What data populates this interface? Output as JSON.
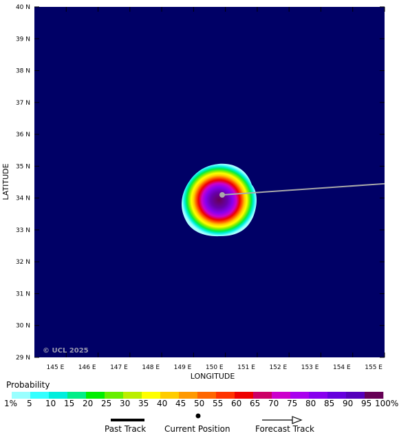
{
  "map": {
    "xlabel": "LONGITUDE",
    "ylabel": "LATITUDE",
    "copyright": "© UCL 2025",
    "background_color": "#000066",
    "lon_range": [
      144,
      155
    ],
    "lat_range": [
      29,
      40
    ],
    "lon_ticks": [
      "145 E",
      "146 E",
      "147 E",
      "148 E",
      "149 E",
      "150 E",
      "151 E",
      "152 E",
      "153 E",
      "154 E",
      "155 E"
    ],
    "lat_ticks": [
      "40 N",
      "39 N",
      "38 N",
      "37 N",
      "36 N",
      "35 N",
      "34 N",
      "33 N",
      "32 N",
      "31 N",
      "30 N",
      "29 N"
    ],
    "current_position": {
      "lon": 149.9,
      "lat": 34.1
    },
    "forecast_track": [
      {
        "lon": 149.9,
        "lat": 34.1
      },
      {
        "lon": 155.0,
        "lat": 34.45
      }
    ]
  },
  "legend": {
    "title": "Probability",
    "labels": [
      "1%",
      "5",
      "10",
      "15",
      "20",
      "25",
      "30",
      "35",
      "40",
      "45",
      "50",
      "55",
      "60",
      "65",
      "70",
      "75",
      "80",
      "85",
      "90",
      "95",
      "100%"
    ],
    "colors": [
      "#99ffff",
      "#33ffff",
      "#00eedd",
      "#00ee88",
      "#00ee00",
      "#66ee00",
      "#bbee00",
      "#ffff00",
      "#ffcc00",
      "#ff9900",
      "#ff6600",
      "#ff3300",
      "#ee0000",
      "#cc0066",
      "#cc00cc",
      "#aa00ee",
      "#8800ee",
      "#6600dd",
      "#5500bb",
      "#660055"
    ]
  },
  "key": {
    "past_track": "Past Track",
    "current_position": "Current Position",
    "forecast_track": "Forecast Track"
  }
}
